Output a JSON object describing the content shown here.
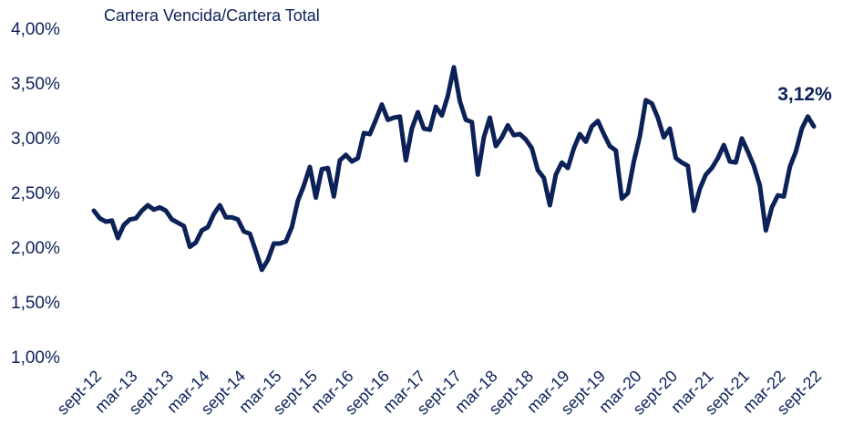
{
  "chart_data": {
    "type": "line",
    "title": "Cartera Vencida/Cartera Total",
    "categories": [
      "sept-12",
      null,
      null,
      null,
      null,
      null,
      "mar-13",
      null,
      null,
      null,
      null,
      null,
      "sept-13",
      null,
      null,
      null,
      null,
      null,
      "mar-14",
      null,
      null,
      null,
      null,
      null,
      "sept-14",
      null,
      null,
      null,
      null,
      null,
      "mar-15",
      null,
      null,
      null,
      null,
      null,
      "sept-15",
      null,
      null,
      null,
      null,
      null,
      "mar-16",
      null,
      null,
      null,
      null,
      null,
      "sept-16",
      null,
      null,
      null,
      null,
      null,
      "mar-17",
      null,
      null,
      null,
      null,
      null,
      "sept-17",
      null,
      null,
      null,
      null,
      null,
      "mar-18",
      null,
      null,
      null,
      null,
      null,
      "sept-18",
      null,
      null,
      null,
      null,
      null,
      "mar-19",
      null,
      null,
      null,
      null,
      null,
      "sept-19",
      null,
      null,
      null,
      null,
      null,
      "mar-20",
      null,
      null,
      null,
      null,
      null,
      "sept-20",
      null,
      null,
      null,
      null,
      null,
      "mar-21",
      null,
      null,
      null,
      null,
      null,
      "sept-21",
      null,
      null,
      null,
      null,
      null,
      "mar-22",
      null,
      null,
      null,
      null,
      null,
      "sept-22"
    ],
    "series": [
      {
        "color": "#0c2158",
        "values": [
          2.35,
          2.28,
          2.25,
          2.26,
          2.1,
          2.22,
          2.27,
          2.28,
          2.35,
          2.4,
          2.36,
          2.38,
          2.35,
          2.27,
          2.24,
          2.21,
          2.02,
          2.06,
          2.17,
          2.2,
          2.32,
          2.4,
          2.29,
          2.29,
          2.27,
          2.16,
          2.14,
          1.98,
          1.81,
          1.9,
          2.05,
          2.05,
          2.07,
          2.2,
          2.44,
          2.58,
          2.75,
          2.47,
          2.73,
          2.74,
          2.48,
          2.81,
          2.86,
          2.8,
          2.83,
          3.06,
          3.05,
          3.18,
          3.32,
          3.18,
          3.2,
          3.21,
          2.81,
          3.1,
          3.25,
          3.1,
          3.09,
          3.3,
          3.22,
          3.4,
          3.66,
          3.35,
          3.18,
          3.16,
          2.68,
          3.02,
          3.2,
          2.94,
          3.02,
          3.13,
          3.04,
          3.05,
          3.0,
          2.92,
          2.72,
          2.65,
          2.4,
          2.68,
          2.79,
          2.74,
          2.92,
          3.05,
          2.98,
          3.12,
          3.17,
          3.05,
          2.94,
          2.9,
          2.46,
          2.51,
          2.8,
          3.03,
          3.36,
          3.33,
          3.2,
          3.02,
          3.1,
          2.83,
          2.79,
          2.76,
          2.35,
          2.55,
          2.68,
          2.74,
          2.83,
          2.95,
          2.8,
          2.79,
          3.01,
          2.89,
          2.76,
          2.58,
          2.17,
          2.38,
          2.49,
          2.48,
          2.75,
          2.89,
          3.1,
          3.21,
          3.12
        ],
        "value_labels": [
          null,
          null,
          null,
          null,
          null,
          null,
          null,
          null,
          null,
          null,
          null,
          null,
          null,
          null,
          null,
          null,
          null,
          null,
          null,
          null,
          null,
          null,
          null,
          null,
          null,
          null,
          null,
          null,
          null,
          null,
          null,
          null,
          null,
          null,
          null,
          null,
          null,
          null,
          null,
          null,
          null,
          null,
          null,
          null,
          null,
          null,
          null,
          null,
          null,
          null,
          null,
          null,
          null,
          null,
          null,
          null,
          null,
          null,
          null,
          null,
          null,
          null,
          null,
          null,
          null,
          null,
          null,
          null,
          null,
          null,
          null,
          null,
          null,
          null,
          null,
          null,
          null,
          null,
          null,
          null,
          null,
          null,
          null,
          null,
          null,
          null,
          null,
          null,
          null,
          null,
          null,
          null,
          null,
          null,
          null,
          null,
          null,
          null,
          null,
          null,
          null,
          null,
          null,
          null,
          null,
          null,
          null,
          null,
          null,
          null,
          null,
          null,
          null,
          null,
          null,
          null,
          null,
          null,
          null,
          null,
          "3,12%"
        ]
      }
    ],
    "ylim": [
      1,
      4
    ],
    "yticks": [
      {
        "value": 1,
        "label": "1,00%"
      },
      {
        "value": 1.5,
        "label": "1,50%"
      },
      {
        "value": 2,
        "label": "2,00%"
      },
      {
        "value": 2.5,
        "label": "2,50%"
      },
      {
        "value": 3,
        "label": "3,00%"
      },
      {
        "value": 3.5,
        "label": "3,50%"
      },
      {
        "value": 4,
        "label": "4,00%"
      }
    ],
    "grid": false
  }
}
